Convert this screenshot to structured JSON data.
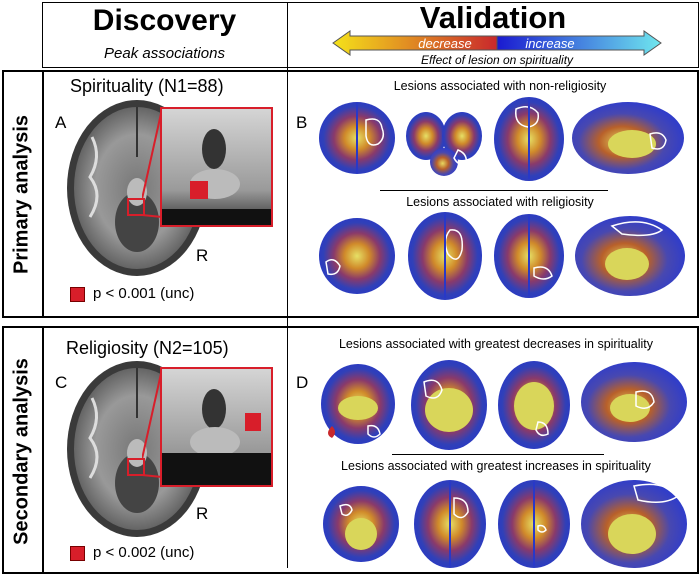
{
  "header": {
    "discovery_title": "Discovery",
    "discovery_subtitle": "Peak associations",
    "validation_title": "Validation",
    "colorbar": {
      "decrease_label": "decrease",
      "increase_label": "increase",
      "caption": "Effect of lesion on spirituality"
    }
  },
  "primary": {
    "row_label": "Primary analysis",
    "title": "Spirituality (N1=88)",
    "panel_a": "A",
    "panel_b": "B",
    "side_label": "R",
    "legend": "p < 0.001 (unc)",
    "top_caption": "Lesions associated with non-religiosity",
    "bottom_caption": "Lesions associated with religiosity"
  },
  "secondary": {
    "row_label": "Secondary analysis",
    "title": "Religiosity (N2=105)",
    "panel_c": "C",
    "panel_d": "D",
    "side_label": "R",
    "legend": "p < 0.002 (unc)",
    "top_caption": "Lesions associated with greatest decreases in spirituality",
    "bottom_caption": "Lesions associated with greatest increases in spirituality"
  },
  "colors": {
    "highlight_red": "#d81e2a",
    "decrease_start": "#f5e21a",
    "decrease_end": "#c9282c",
    "increase_start": "#1a1ad0",
    "increase_end": "#6fe7ee"
  }
}
